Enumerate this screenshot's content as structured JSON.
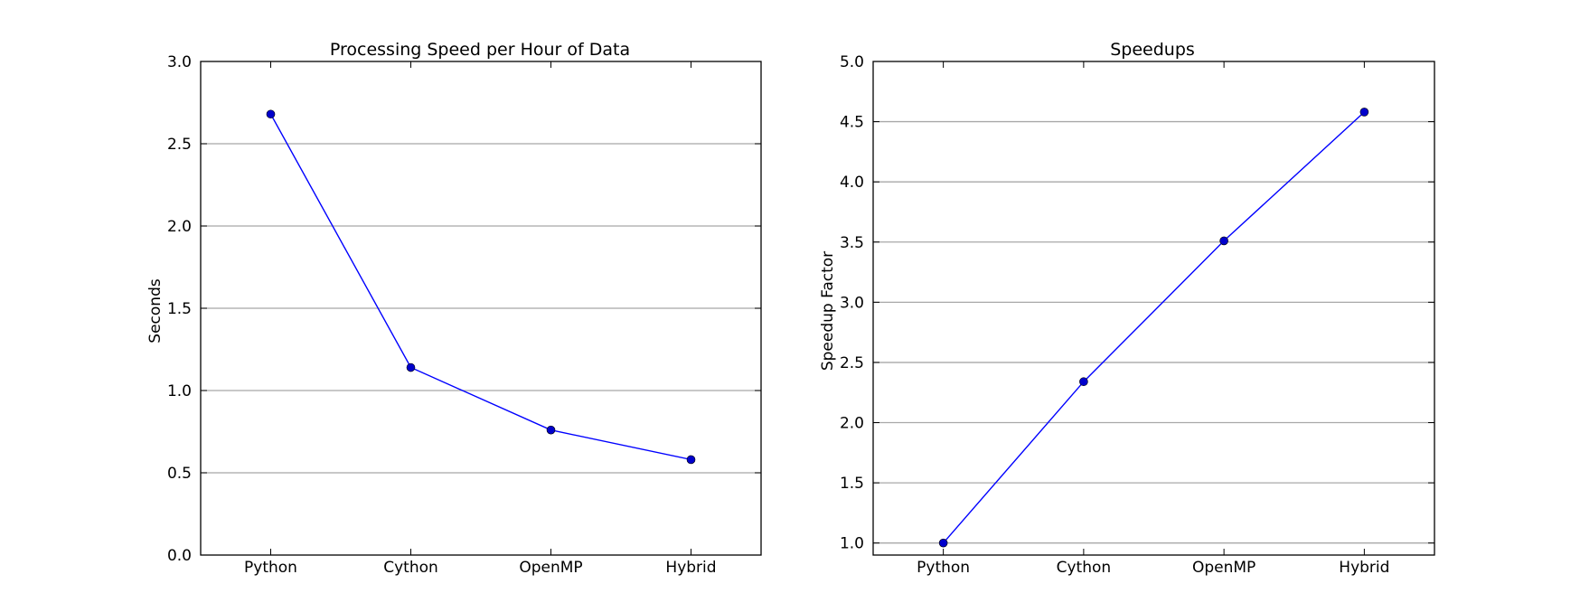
{
  "chart_data": [
    {
      "type": "line",
      "title": "Processing Speed per Hour of Data",
      "xlabel": "",
      "ylabel": "Seconds",
      "categories": [
        "Python",
        "Cython",
        "OpenMP",
        "Hybrid"
      ],
      "series": [
        {
          "values": [
            2.68,
            1.14,
            0.76,
            0.58
          ]
        }
      ],
      "ylim": [
        0,
        3.0
      ],
      "yticks": [
        "0.0",
        "0.5",
        "1.0",
        "1.5",
        "2.0",
        "2.5",
        "3.0"
      ],
      "grid": "y-axis",
      "color": "#0000ff",
      "marker_color": "#0000cc"
    },
    {
      "type": "line",
      "title": "Speedups",
      "xlabel": "",
      "ylabel": "Speedup Factor",
      "categories": [
        "Python",
        "Cython",
        "OpenMP",
        "Hybrid"
      ],
      "series": [
        {
          "values": [
            1.0,
            2.34,
            3.51,
            4.58
          ]
        }
      ],
      "ylim": [
        0.9,
        5.0
      ],
      "yticks": [
        "1.0",
        "1.5",
        "2.0",
        "2.5",
        "3.0",
        "3.5",
        "4.0",
        "4.5",
        "5.0"
      ],
      "grid": "y-axis",
      "color": "#0000ff",
      "marker_color": "#0000cc"
    }
  ]
}
